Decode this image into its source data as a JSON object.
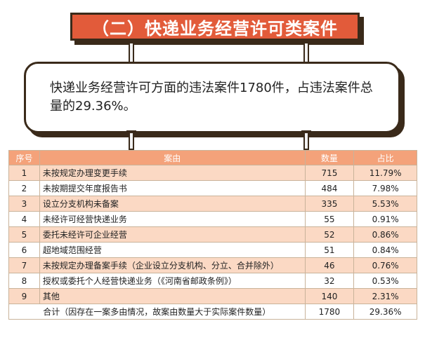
{
  "title": "（二）快递业务经营许可类案件",
  "summary_text": "快递业务经营许可方面的违法案件1780件，占违法案件总量的29.36%。",
  "table": {
    "headers": {
      "no": "序号",
      "reason": "案由",
      "count": "数量",
      "ratio": "占比"
    },
    "rows": [
      {
        "no": "1",
        "reason": "未按规定办理变更手续",
        "count": "715",
        "ratio": "11.79%"
      },
      {
        "no": "2",
        "reason": "未按期提交年度报告书",
        "count": "484",
        "ratio": "7.98%"
      },
      {
        "no": "3",
        "reason": "设立分支机构未备案",
        "count": "335",
        "ratio": "5.53%"
      },
      {
        "no": "4",
        "reason": "未经许可经营快递业务",
        "count": "55",
        "ratio": "0.91%"
      },
      {
        "no": "5",
        "reason": "委托未经许可企业经营",
        "count": "52",
        "ratio": "0.86%"
      },
      {
        "no": "6",
        "reason": "超地域范围经营",
        "count": "51",
        "ratio": "0.84%"
      },
      {
        "no": "7",
        "reason": "未按规定办理备案手续（企业设立分支机构、分立、合并除外）",
        "count": "46",
        "ratio": "0.76%"
      },
      {
        "no": "8",
        "reason": "授权或委托个人经营快递业务（《河南省邮政条例》）",
        "count": "32",
        "ratio": "0.53%"
      },
      {
        "no": "9",
        "reason": "其他",
        "count": "140",
        "ratio": "2.31%"
      }
    ],
    "total": {
      "label": "合计（因存在一案多由情况，故案由数量大于实际案件数量）",
      "count": "1780",
      "ratio": "29.36%"
    }
  },
  "colors": {
    "banner": "#e25b3a",
    "header": "#f4a27a",
    "stripe": "#fbd9c4",
    "outline": "#3a2a1a"
  }
}
